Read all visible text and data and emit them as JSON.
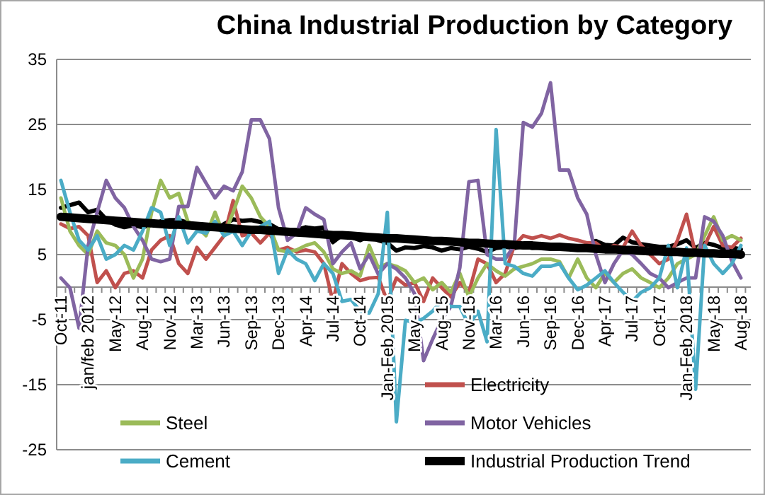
{
  "chart_data": {
    "type": "line",
    "title": "China Industrial Production by Category",
    "categories": [
      "Oct-11",
      null,
      null,
      "jan/feb 2012",
      null,
      null,
      "May-12",
      null,
      null,
      "Aug-12",
      null,
      null,
      "Nov-12",
      null,
      null,
      "Mar-13",
      null,
      null,
      "Jun-13",
      null,
      null,
      "Sep-13",
      null,
      null,
      "Dec-13",
      null,
      null,
      "Apr-14",
      null,
      null,
      "Jul-14",
      null,
      null,
      "Oct-14",
      null,
      null,
      "Jan-Feb 2015",
      null,
      null,
      "May-15",
      null,
      null,
      "Aug-15",
      null,
      null,
      "Nov-15",
      null,
      null,
      "Mar-16",
      null,
      null,
      "Jun-16",
      null,
      null,
      "Sep-16",
      null,
      null,
      "Dec-16",
      null,
      null,
      "Apr-17",
      null,
      null,
      "Jul-17",
      null,
      null,
      "Oct-17",
      null,
      null,
      "Jan-Feb 2018",
      null,
      null,
      "May-18",
      null,
      null,
      "Aug-18"
    ],
    "series": [
      {
        "color": "#000000",
        "values": [
          12.2,
          12.6,
          13,
          11.5,
          11.9,
          10.4,
          9.6,
          9.2,
          9.5,
          9.2,
          9.6,
          10.1,
          10.3,
          10.3,
          9.9,
          9.3,
          9.2,
          8.9,
          9.7,
          10.4,
          10.2,
          10.3,
          10,
          9.7,
          8.9,
          8.8,
          8.8,
          9.2,
          9.0,
          9.2,
          6.9,
          8.0,
          7.7,
          7.2,
          7.9,
          7.2,
          6.8,
          5.6,
          6.1,
          6.0,
          6.3,
          6.1,
          5.6,
          6.0,
          5.8,
          6.2,
          5.9,
          5.4,
          6.0,
          6.2,
          6.0,
          6.3,
          6.0,
          6.1,
          6.3,
          6.1,
          6.2,
          6.1,
          6.3,
          7.1,
          6.5,
          6.4,
          7.6,
          6.9,
          6.6,
          6.4,
          6.2,
          6.2,
          6.6,
          7.2,
          6.0,
          6.8,
          6.5,
          6.0,
          6.1,
          5.8
        ]
      },
      {
        "name": "Electricity",
        "color": "#c0504d",
        "values": [
          9.7,
          9,
          9.3,
          7.9,
          0.7,
          2.5,
          -0.1,
          2.1,
          2.5,
          1.4,
          5.7,
          7.2,
          7.9,
          3.6,
          2.1,
          6.1,
          4.3,
          6.1,
          7.9,
          13.3,
          7.9,
          8.3,
          6.8,
          8.3,
          5.7,
          6.1,
          5.4,
          5.7,
          5.4,
          3.6,
          -2.2,
          3.6,
          2.1,
          1,
          1.4,
          1.5,
          -2.2,
          1.4,
          0.3,
          0.7,
          -2.2,
          1.4,
          -0.1,
          -1.5,
          0.7,
          -0.8,
          4.3,
          3.6,
          0.7,
          2.1,
          6.4,
          7.9,
          7.5,
          7.9,
          7.5,
          8,
          7.5,
          7.2,
          6.8,
          6.8,
          5.7,
          6.4,
          6.1,
          8.6,
          6.4,
          5,
          3.6,
          4.3,
          7.2,
          11.2,
          5,
          6.4,
          9.3,
          6.4,
          6.1,
          7.5
        ]
      },
      {
        "name": "Steel",
        "color": "#9bbb59",
        "values": [
          13.7,
          8.6,
          6.4,
          5,
          8.6,
          6.8,
          6.4,
          5,
          1.4,
          4.3,
          11.5,
          16.4,
          13.7,
          14.4,
          10.1,
          9.3,
          7.9,
          11.5,
          7.9,
          11.5,
          15.5,
          13.7,
          10.8,
          9.3,
          5.7,
          5.4,
          5.7,
          6.4,
          6.8,
          5.4,
          2.8,
          2.1,
          2.5,
          1.7,
          6.4,
          3,
          3.6,
          3.2,
          2.5,
          0.7,
          1.4,
          -0.4,
          0.7,
          -0.8,
          2.1,
          -1.5,
          1.4,
          3.6,
          2.5,
          1.7,
          2.8,
          3.2,
          3.6,
          4.3,
          4.3,
          3.9,
          1.4,
          4.3,
          1.4,
          -0.1,
          2.1,
          0.7,
          2.1,
          2.8,
          1.4,
          0.7,
          -0.1,
          1.4,
          3.6,
          4.3,
          5,
          7.9,
          10.8,
          7.2,
          7.9,
          7.2
        ]
      },
      {
        "name": "Motor Vehicles",
        "color": "#8064a2",
        "values": [
          1.4,
          -0.1,
          -6.3,
          6.4,
          11.5,
          16.4,
          13.7,
          12.2,
          9.3,
          7.2,
          4.3,
          3.9,
          4.3,
          12.4,
          12.4,
          18.4,
          16,
          13.7,
          15.5,
          14.8,
          17.7,
          25.7,
          25.7,
          22.8,
          12.2,
          7.2,
          8.3,
          12.2,
          11.2,
          10.4,
          3.6,
          5.4,
          6.8,
          2.8,
          5,
          2,
          3.6,
          2.8,
          1.4,
          -1,
          -11.3,
          -8,
          -5,
          -3,
          3,
          16.2,
          16.4,
          5,
          4.3,
          4.3,
          6.4,
          25.3,
          24.6,
          26.7,
          31.4,
          18,
          18,
          13.7,
          11.2,
          5,
          0.7,
          3.6,
          5.7,
          5,
          3.6,
          2.1,
          1.4,
          -0.1,
          0.7,
          1.4,
          1.4,
          10.8,
          10.1,
          7.9,
          4,
          1.4
        ]
      },
      {
        "name": "Cement",
        "color": "#4bacc6",
        "values": [
          16.4,
          11.5,
          7.2,
          5.7,
          7.9,
          4.3,
          5,
          6.4,
          5.7,
          8.6,
          12.2,
          11.5,
          6.4,
          10.8,
          6.8,
          8.6,
          8.3,
          10.1,
          7.9,
          8.6,
          6.4,
          8.6,
          9.3,
          10.1,
          2.1,
          5.7,
          4.3,
          3.6,
          1,
          3.6,
          2.1,
          -2.2,
          -1.9,
          -3.7,
          -4,
          -1,
          11.5,
          -20.7,
          -5.1,
          -5.5,
          -4.8,
          -3.7,
          -2.2,
          -3,
          -3,
          -5.9,
          -3.7,
          -8.4,
          24.2,
          3.6,
          3.2,
          2.1,
          1.7,
          3.2,
          3.2,
          3.6,
          1.4,
          -0.4,
          0.3,
          1.4,
          2.5,
          0.7,
          -0.8,
          -2.2,
          -0.8,
          -0.1,
          1.4,
          6.4,
          -0.1,
          6,
          -15.7,
          6.4,
          3.6,
          2.1,
          3.6,
          6.4
        ]
      },
      {
        "name": "Industrial Production Trend",
        "color": "#000000",
        "values": [
          10.8,
          10.7,
          10.6,
          10.5,
          10.4,
          10.3,
          10.2,
          10.1,
          10.0,
          9.9,
          9.8,
          9.7,
          9.6,
          9.6,
          9.5,
          9.4,
          9.3,
          9.2,
          9.1,
          9.0,
          8.9,
          8.8,
          8.8,
          8.7,
          8.6,
          8.5,
          8.4,
          8.3,
          8.2,
          8.1,
          8.0,
          8.0,
          7.9,
          7.8,
          7.7,
          7.6,
          7.5,
          7.5,
          7.4,
          7.3,
          7.2,
          7.1,
          7.1,
          7.0,
          6.9,
          6.8,
          6.8,
          6.7,
          6.6,
          6.6,
          6.5,
          6.4,
          6.4,
          6.3,
          6.2,
          6.2,
          6.1,
          6.0,
          6.0,
          5.9,
          5.8,
          5.8,
          5.7,
          5.7,
          5.6,
          5.5,
          5.5,
          5.4,
          5.4,
          5.3,
          5.3,
          5.2,
          5.2,
          5.1,
          5.1,
          5.0
        ]
      }
    ],
    "ylim": [
      -25,
      35
    ],
    "yticks": [
      -25,
      -15,
      -5,
      5,
      15,
      25,
      35
    ],
    "grid": "y",
    "legend": "bottom",
    "marker": "none",
    "line_style": "solid"
  }
}
